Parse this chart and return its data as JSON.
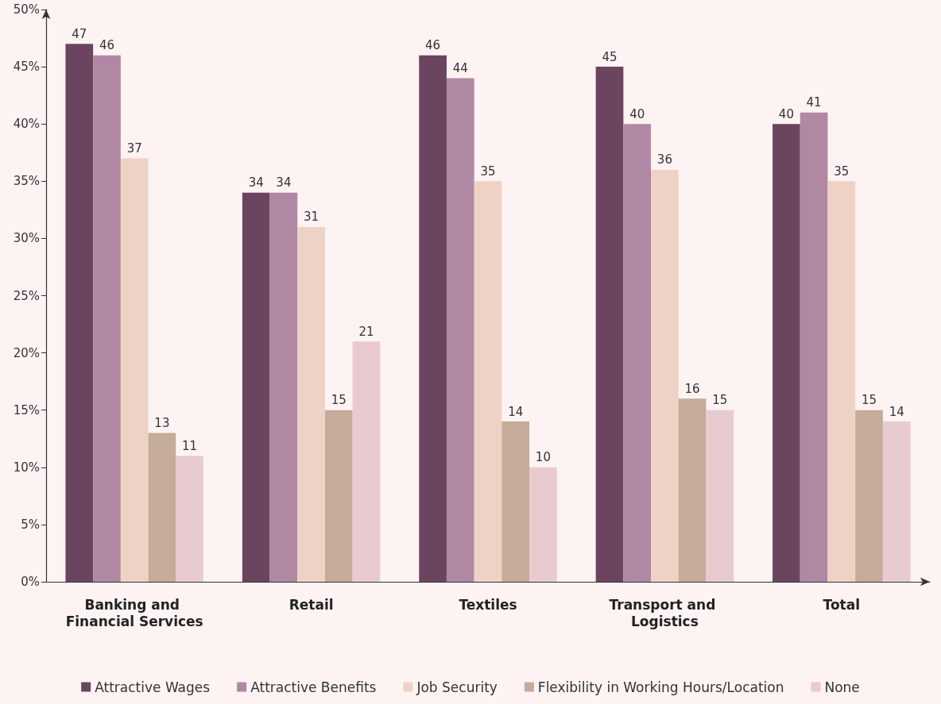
{
  "chart_data": {
    "type": "bar",
    "categories": [
      "Banking and Financial Services",
      "Retail",
      "Textiles",
      "Transport and Logistics",
      "Total"
    ],
    "series": [
      {
        "name": "Attractive Wages",
        "color": "#6b4560",
        "values": [
          47,
          34,
          46,
          45,
          40
        ],
        "value_labels": [
          "47",
          "34",
          "46",
          "45",
          "40"
        ]
      },
      {
        "name": "Attractive Benefits",
        "color": "#b088a4",
        "values": [
          46,
          34,
          44,
          40,
          41
        ],
        "value_labels": [
          "46",
          "34",
          "44",
          "40",
          "41"
        ]
      },
      {
        "name": "Job Security",
        "color": "#efd2c6",
        "values": [
          37,
          31,
          35,
          36,
          35
        ],
        "value_labels": [
          "37",
          "31",
          "35",
          "36",
          "35"
        ]
      },
      {
        "name": "Flexibility in Working Hours/Location",
        "color": "#c5ab9a",
        "values": [
          13,
          15,
          14,
          16,
          15
        ],
        "value_labels": [
          "13",
          "15",
          "14",
          "16",
          "15"
        ]
      },
      {
        "name": "None",
        "color": "#e8cbcf",
        "values": [
          11,
          21,
          10,
          15,
          14
        ],
        "value_labels": [
          "11",
          "21",
          "10",
          "15",
          "14"
        ]
      }
    ],
    "ylim": [
      0,
      50
    ],
    "yticks": [
      {
        "value": 0,
        "label": "0%"
      },
      {
        "value": 5,
        "label": "5%"
      },
      {
        "value": 10,
        "label": "10%"
      },
      {
        "value": 15,
        "label": "15%"
      },
      {
        "value": 20,
        "label": "20%"
      },
      {
        "value": 25,
        "label": "25%"
      },
      {
        "value": 30,
        "label": "30%"
      },
      {
        "value": 35,
        "label": "35%"
      },
      {
        "value": 40,
        "label": "40%"
      },
      {
        "value": 45,
        "label": "45%"
      },
      {
        "value": 50,
        "label": "50%"
      }
    ],
    "grid": false,
    "legend": "bottom"
  }
}
